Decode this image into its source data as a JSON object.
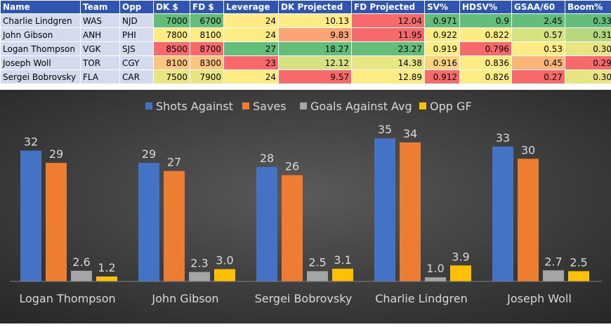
{
  "table": {
    "headers": [
      "Name",
      "Team",
      "Opp",
      "DK $",
      "FD $",
      "Leverage",
      "DK Projected",
      "FD Projected",
      "SV%",
      "HDSV%",
      "GSAA/60",
      "Boom%"
    ],
    "rows": [
      {
        "cells": [
          "Charlie Lindgren",
          "WAS",
          "NJD",
          "7000",
          "6700",
          "24",
          "10.13",
          "12.04",
          "0.971",
          "0.9",
          "2.45",
          "0.33"
        ],
        "colors": [
          "#d4dbee",
          "#d4dbee",
          "#d4dbee",
          "#63be7b",
          "#63be7b",
          "#fdeb84",
          "#fdeb84",
          "#f8696b",
          "#63be7b",
          "#63be7b",
          "#63be7b",
          "#63be7b"
        ]
      },
      {
        "cells": [
          "John Gibson",
          "ANH",
          "PHI",
          "7800",
          "8100",
          "24",
          "9.83",
          "11.95",
          "0.922",
          "0.822",
          "0.57",
          "0.31"
        ],
        "colors": [
          "#d4dbee",
          "#d4dbee",
          "#d4dbee",
          "#ffeb84",
          "#ffeb84",
          "#fdeb84",
          "#fba476",
          "#f8696b",
          "#fdeb84",
          "#fdeb84",
          "#d9e282",
          "#b5d87f"
        ]
      },
      {
        "cells": [
          "Logan Thompson",
          "VGK",
          "SJS",
          "8500",
          "8700",
          "27",
          "18.27",
          "23.27",
          "0.919",
          "0.796",
          "0.53",
          "0.30"
        ],
        "colors": [
          "#d4dbee",
          "#d4dbee",
          "#d4dbee",
          "#f8696b",
          "#f8696b",
          "#63be7b",
          "#63be7b",
          "#63be7b",
          "#fdeb84",
          "#f8696b",
          "#fdeb84",
          "#e8e583"
        ]
      },
      {
        "cells": [
          "Joseph Woll",
          "TOR",
          "CGY",
          "8100",
          "8300",
          "23",
          "12.12",
          "14.38",
          "0.916",
          "0.836",
          "0.45",
          "0.29"
        ],
        "colors": [
          "#d4dbee",
          "#d4dbee",
          "#d4dbee",
          "#fcc57e",
          "#fcc57e",
          "#f8696b",
          "#d6e282",
          "#e8e583",
          "#fcd37f",
          "#fdeb84",
          "#fcb479",
          "#f8696b"
        ]
      },
      {
        "cells": [
          "Sergei Bobrovsky",
          "FLA",
          "CAR",
          "7500",
          "7900",
          "24",
          "9.57",
          "12.89",
          "0.912",
          "0.826",
          "0.27",
          "0.30"
        ],
        "colors": [
          "#d4dbee",
          "#d4dbee",
          "#d4dbee",
          "#e8e583",
          "#e8e583",
          "#fdeb84",
          "#f8696b",
          "#fdeb84",
          "#f8696b",
          "#fdeb84",
          "#f8696b",
          "#e8e583"
        ]
      }
    ]
  },
  "chart_data": {
    "type": "bar",
    "categories": [
      "Logan Thompson",
      "John Gibson",
      "Sergei Bobrovsky",
      "Charlie Lindgren",
      "Joseph Woll"
    ],
    "series": [
      {
        "name": "Shots Against",
        "color": "#4472c4",
        "values": [
          32,
          29,
          28,
          35,
          33
        ],
        "labels": [
          "32",
          "29",
          "28",
          "35",
          "33"
        ]
      },
      {
        "name": "Saves",
        "color": "#ed7d31",
        "values": [
          29,
          27,
          26,
          34,
          30
        ],
        "labels": [
          "29",
          "27",
          "26",
          "34",
          "30"
        ]
      },
      {
        "name": "Goals Against Avg",
        "color": "#a5a5a5",
        "values": [
          2.6,
          2.3,
          2.5,
          1.0,
          2.7
        ],
        "labels": [
          "2.6",
          "2.3",
          "2.5",
          "1.0",
          "2.7"
        ]
      },
      {
        "name": "Opp GF",
        "color": "#ffc000",
        "values": [
          1.2,
          3.0,
          3.1,
          3.9,
          2.5
        ],
        "labels": [
          "1.2",
          "3.0",
          "3.1",
          "3.9",
          "2.5"
        ]
      }
    ],
    "ylim": [
      0,
      40
    ],
    "grid": false,
    "legend_position": "top"
  }
}
